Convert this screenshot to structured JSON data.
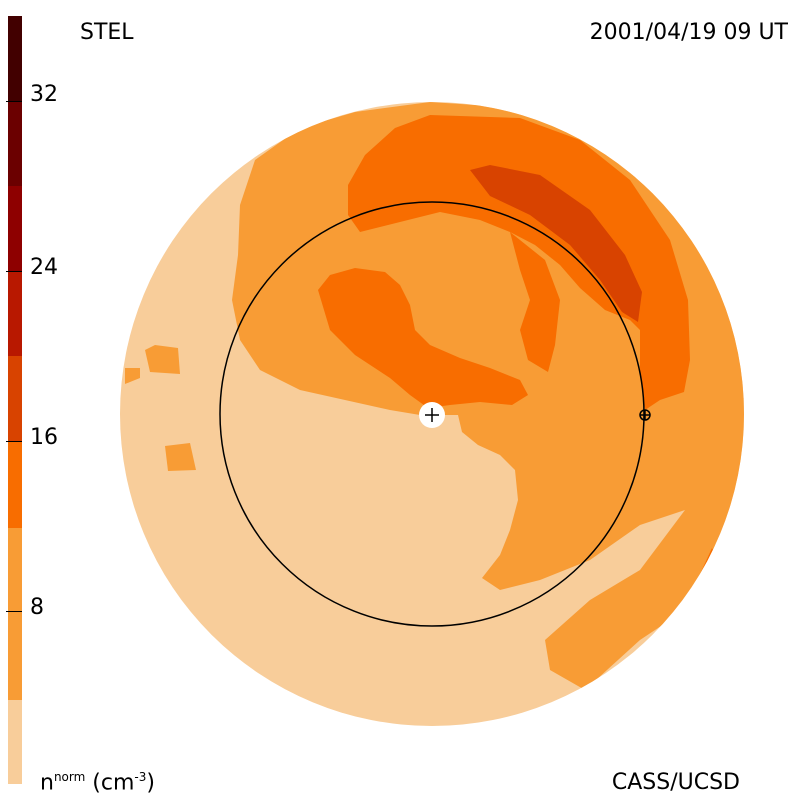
{
  "header": {
    "left_title": "STEL",
    "right_title": "2001/04/19 09 UT"
  },
  "footer": {
    "credit": "CASS/UCSD",
    "units_base": "n",
    "units_sup": "norm",
    "units_rest": " (cm",
    "units_exp": "-3",
    "units_close": ")"
  },
  "colorbar": {
    "ticks": [
      "8",
      "16",
      "24",
      "32"
    ],
    "colors": [
      "#f8cd9a",
      "#f89c35",
      "#f86d00",
      "#d84300",
      "#b81800",
      "#8e0000",
      "#6b0000",
      "#420000",
      "#220000"
    ]
  },
  "map": {
    "colors": {
      "base": "#f8cd9a",
      "level1": "#f89c35",
      "level2": "#f86d00",
      "level3": "#d84300",
      "outline": "#000000"
    },
    "icons": [
      "sun-marker-icon",
      "earth-marker-icon"
    ]
  }
}
